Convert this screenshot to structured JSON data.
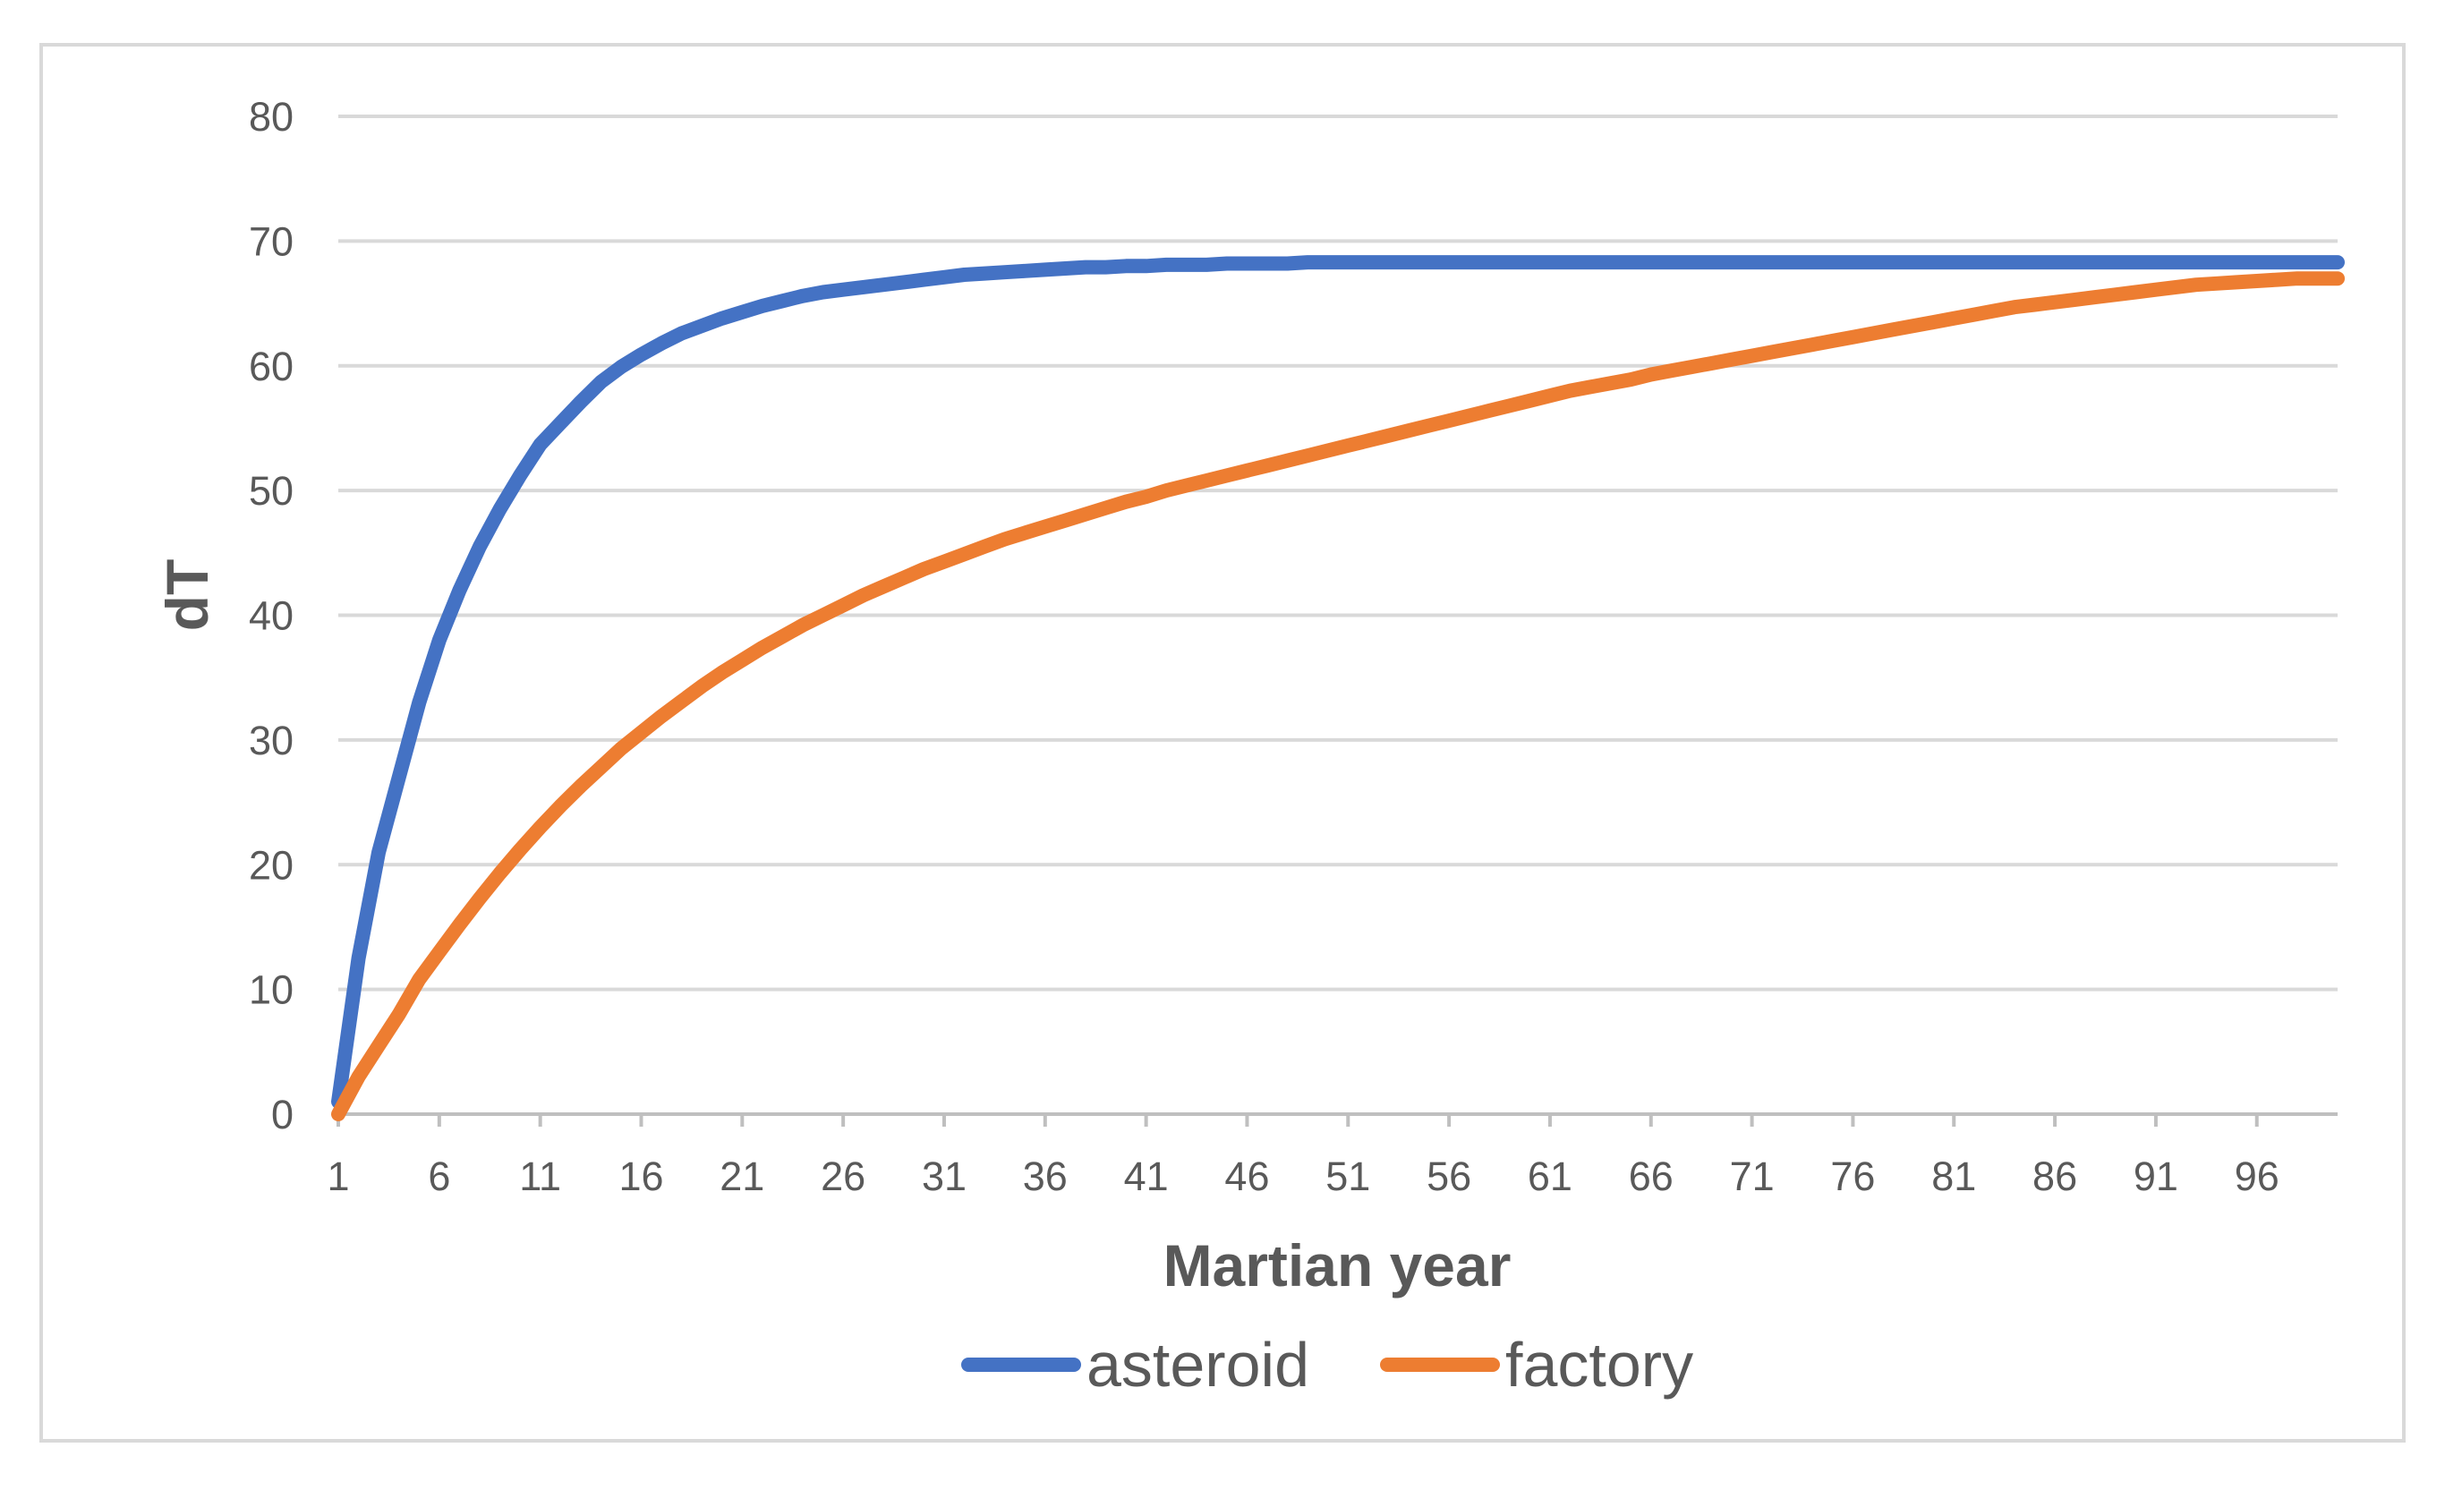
{
  "chart_data": {
    "type": "line",
    "title": "",
    "xlabel": "Martian year",
    "ylabel": "dT",
    "xlim": [
      1,
      100
    ],
    "ylim": [
      0,
      80
    ],
    "y_ticks": [
      0,
      10,
      20,
      30,
      40,
      50,
      60,
      70,
      80
    ],
    "x_ticks": [
      1,
      6,
      11,
      16,
      21,
      26,
      31,
      36,
      41,
      46,
      51,
      56,
      61,
      66,
      71,
      76,
      81,
      86,
      91,
      96
    ],
    "grid": true,
    "legend": "bottom",
    "x": [
      1,
      2,
      3,
      4,
      5,
      6,
      7,
      8,
      9,
      10,
      11,
      12,
      13,
      14,
      15,
      16,
      17,
      18,
      19,
      20,
      21,
      22,
      23,
      24,
      25,
      26,
      27,
      28,
      29,
      30,
      31,
      32,
      33,
      34,
      35,
      36,
      37,
      38,
      39,
      40,
      41,
      42,
      43,
      44,
      45,
      46,
      47,
      48,
      49,
      50,
      51,
      52,
      53,
      54,
      55,
      56,
      57,
      58,
      59,
      60,
      61,
      62,
      63,
      64,
      65,
      66,
      67,
      68,
      69,
      70,
      71,
      72,
      73,
      74,
      75,
      76,
      77,
      78,
      79,
      80,
      81,
      82,
      83,
      84,
      85,
      86,
      87,
      88,
      89,
      90,
      91,
      92,
      93,
      94,
      95,
      96,
      97,
      98,
      99,
      100
    ],
    "series": [
      {
        "name": "asteroid",
        "color": "#4472c4",
        "values": [
          1,
          12.5,
          21,
          27,
          33,
          38,
          42,
          45.5,
          48.5,
          51.2,
          53.7,
          55.4,
          57.1,
          58.7,
          59.9,
          60.9,
          61.8,
          62.6,
          63.2,
          63.8,
          64.3,
          64.8,
          65.2,
          65.6,
          65.9,
          66.1,
          66.3,
          66.5,
          66.7,
          66.9,
          67.1,
          67.3,
          67.4,
          67.5,
          67.6,
          67.7,
          67.8,
          67.9,
          67.9,
          68.0,
          68.0,
          68.1,
          68.1,
          68.1,
          68.2,
          68.2,
          68.2,
          68.2,
          68.3,
          68.3,
          68.3,
          68.3,
          68.3,
          68.3,
          68.3,
          68.3,
          68.3,
          68.3,
          68.3,
          68.3,
          68.3,
          68.3,
          68.3,
          68.3,
          68.3,
          68.3,
          68.3,
          68.3,
          68.3,
          68.3,
          68.3,
          68.3,
          68.3,
          68.3,
          68.3,
          68.3,
          68.3,
          68.3,
          68.3,
          68.3,
          68.3,
          68.3,
          68.3,
          68.3,
          68.3,
          68.3,
          68.3,
          68.3,
          68.3,
          68.3,
          68.3,
          68.3,
          68.3,
          68.3,
          68.3,
          68.3,
          68.3,
          68.3,
          68.3,
          68.3
        ]
      },
      {
        "name": "factory",
        "color": "#ed7d31",
        "values": [
          0,
          3,
          5.5,
          8,
          10.8,
          13,
          15.2,
          17.3,
          19.3,
          21.2,
          23.0,
          24.7,
          26.3,
          27.8,
          29.3,
          30.6,
          31.9,
          33.1,
          34.3,
          35.4,
          36.4,
          37.4,
          38.3,
          39.2,
          40.0,
          40.8,
          41.6,
          42.3,
          43.0,
          43.7,
          44.3,
          44.9,
          45.5,
          46.1,
          46.6,
          47.1,
          47.6,
          48.1,
          48.6,
          49.1,
          49.5,
          50.0,
          50.4,
          50.8,
          51.2,
          51.6,
          52.0,
          52.4,
          52.8,
          53.2,
          53.6,
          54.0,
          54.4,
          54.8,
          55.2,
          55.6,
          56.0,
          56.4,
          56.8,
          57.2,
          57.6,
          58.0,
          58.3,
          58.6,
          58.9,
          59.3,
          59.6,
          59.9,
          60.2,
          60.5,
          60.8,
          61.1,
          61.4,
          61.7,
          62.0,
          62.3,
          62.6,
          62.9,
          63.2,
          63.5,
          63.8,
          64.1,
          64.4,
          64.7,
          64.9,
          65.1,
          65.3,
          65.5,
          65.7,
          65.9,
          66.1,
          66.3,
          66.5,
          66.6,
          66.7,
          66.8,
          66.9,
          67.0,
          67.0,
          67.0
        ]
      }
    ]
  },
  "colors": {
    "gridline": "#d9d9d9",
    "axis": "#bfbfbf",
    "text": "#595959",
    "border": "#d9d9d9"
  }
}
